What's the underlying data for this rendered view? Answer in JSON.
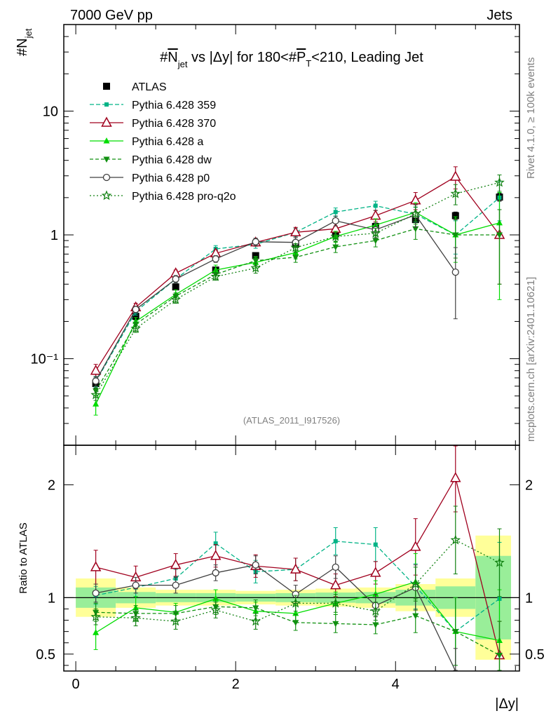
{
  "header": {
    "left": "7000 GeV pp",
    "right": "Jets",
    "analysis_tag": "(ATLAS_2011_I917526)",
    "side_top": "Rivet 4.1.0, ≥ 100k events",
    "side_bottom": "mcplots.cern.ch [arXiv:2401.10621]"
  },
  "chart_data": [
    {
      "type": "line",
      "panel": "main",
      "title": "#N_jet vs |Δy| for 180<#P_T<210, Leading Jet",
      "title_parts": {
        "a": "#",
        "b": "N",
        "c": "jet",
        "d": " vs |Δy| for 180<#",
        "e": "P",
        "f": "T",
        "g": "<210, Leading Jet"
      },
      "ylabel": "#N_jet",
      "ylabel_parts": {
        "base": "#N",
        "sub": "jet"
      },
      "yscale": "log",
      "ylim": [
        0.02,
        50
      ],
      "xlim": [
        -0.15,
        5.55
      ],
      "ytick_labels": [
        "10",
        "1",
        "10⁻¹"
      ],
      "ytick_values": [
        10,
        1,
        0.1
      ],
      "x": [
        0.25,
        0.75,
        1.25,
        1.75,
        2.25,
        2.75,
        3.25,
        3.75,
        4.25,
        4.75,
        5.3
      ],
      "series": [
        {
          "name": "ATLAS",
          "color": "#000000",
          "marker": "square",
          "dash": "none",
          "line": false,
          "values": [
            0.063,
            0.22,
            0.38,
            0.52,
            0.68,
            0.84,
            1.02,
            1.17,
            1.33,
            1.43,
            2.02
          ],
          "err": [
            0.005,
            0.015,
            0.02,
            0.025,
            0.03,
            0.04,
            0.05,
            0.06,
            0.07,
            0.1,
            0.15
          ]
        },
        {
          "name": "Pythia 6.428 359",
          "color": "#00b386",
          "marker": "smallsquare",
          "dash": "6,3",
          "line": true,
          "values": [
            0.065,
            0.24,
            0.44,
            0.77,
            0.84,
            1.05,
            1.53,
            1.72,
            1.47,
            1.0,
            2.0
          ],
          "err": [
            0.006,
            0.015,
            0.03,
            0.05,
            0.06,
            0.08,
            0.12,
            0.15,
            0.2,
            0.3,
            0.7
          ]
        },
        {
          "name": "Pythia 6.428 370",
          "color": "#a0001e",
          "marker": "triangle-open",
          "dash": "none",
          "line": true,
          "values": [
            0.08,
            0.26,
            0.49,
            0.71,
            0.87,
            1.05,
            1.12,
            1.43,
            1.9,
            2.95,
            1.0
          ],
          "err": [
            0.01,
            0.02,
            0.03,
            0.04,
            0.06,
            0.1,
            0.12,
            0.15,
            0.3,
            0.6,
            0.6
          ]
        },
        {
          "name": "Pythia 6.428 a",
          "color": "#00dd00",
          "marker": "triangle",
          "dash": "none",
          "line": true,
          "values": [
            0.043,
            0.2,
            0.33,
            0.52,
            0.6,
            0.72,
            0.97,
            1.2,
            1.52,
            1.0,
            1.25
          ],
          "err": [
            0.008,
            0.015,
            0.03,
            0.05,
            0.06,
            0.08,
            0.1,
            0.15,
            0.3,
            0.4,
            0.95
          ]
        },
        {
          "name": "Pythia 6.428 dw",
          "color": "#109010",
          "marker": "triangle-down",
          "dash": "5,3",
          "line": true,
          "values": [
            0.055,
            0.19,
            0.32,
            0.48,
            0.62,
            0.66,
            0.8,
            0.9,
            1.12,
            1.0,
            1.0
          ],
          "err": [
            0.005,
            0.015,
            0.02,
            0.04,
            0.05,
            0.06,
            0.08,
            0.1,
            0.2,
            0.35,
            0.6
          ]
        },
        {
          "name": "Pythia 6.428 p0",
          "color": "#404040",
          "marker": "circle-open",
          "dash": "none",
          "line": true,
          "values": [
            0.066,
            0.25,
            0.44,
            0.64,
            0.88,
            0.87,
            1.3,
            1.1,
            1.45,
            0.5,
            0.0
          ],
          "err": [
            0.006,
            0.015,
            0.03,
            0.04,
            0.06,
            0.08,
            0.12,
            0.15,
            0.3,
            0.29,
            0.0
          ]
        },
        {
          "name": "Pythia 6.428 pro-q2o",
          "color": "#108010",
          "marker": "star",
          "dash": "2,3",
          "line": true,
          "values": [
            0.051,
            0.175,
            0.3,
            0.46,
            0.54,
            0.79,
            0.97,
            1.03,
            1.48,
            2.15,
            2.65
          ],
          "err": [
            0.005,
            0.012,
            0.02,
            0.03,
            0.05,
            0.06,
            0.08,
            0.1,
            0.2,
            0.4,
            0.4
          ]
        }
      ]
    },
    {
      "type": "line",
      "panel": "ratio",
      "ylabel": "Ratio to ATLAS",
      "xlabel": "|Δy|",
      "ylim": [
        0.35,
        2.35
      ],
      "xlim": [
        -0.15,
        5.55
      ],
      "xtick_labels": [
        "0",
        "2",
        "4"
      ],
      "xtick_values": [
        0,
        2,
        4
      ],
      "ytick_labels": [
        "2",
        "1",
        "0.5"
      ],
      "ytick_values": [
        2,
        1,
        0.5
      ],
      "bins": [
        0,
        0.5,
        1.0,
        1.5,
        2.0,
        2.5,
        3.0,
        3.5,
        4.0,
        4.5,
        5.0,
        5.55
      ],
      "band_outer": [
        0.17,
        0.09,
        0.07,
        0.07,
        0.06,
        0.07,
        0.08,
        0.09,
        0.12,
        0.17,
        0.55
      ],
      "band_inner": [
        0.09,
        0.05,
        0.04,
        0.04,
        0.035,
        0.04,
        0.045,
        0.05,
        0.07,
        0.1,
        0.37
      ],
      "band_colors": {
        "outer": "#ffff99",
        "inner": "#99ee99"
      },
      "x": [
        0.25,
        0.75,
        1.25,
        1.75,
        2.25,
        2.75,
        3.25,
        3.75,
        4.25,
        4.75,
        5.3
      ],
      "series": [
        {
          "name": "Pythia 6.428 359",
          "values": [
            1.02,
            1.09,
            1.17,
            1.48,
            1.23,
            1.25,
            1.5,
            1.47,
            1.1,
            0.7,
            0.99
          ],
          "err": [
            0.08,
            0.08,
            0.08,
            0.1,
            0.1,
            0.1,
            0.12,
            0.15,
            0.2,
            0.3,
            0.5
          ]
        },
        {
          "name": "Pythia 6.428 370",
          "values": [
            1.27,
            1.18,
            1.29,
            1.37,
            1.28,
            1.25,
            1.11,
            1.22,
            1.45,
            2.06,
            0.49
          ],
          "err": [
            0.15,
            0.1,
            0.1,
            0.1,
            0.1,
            0.1,
            0.1,
            0.1,
            0.25,
            0.3,
            0.3
          ]
        },
        {
          "name": "Pythia 6.428 a",
          "values": [
            0.69,
            0.91,
            0.87,
            0.99,
            0.88,
            0.86,
            0.95,
            1.03,
            1.14,
            0.7,
            0.62
          ],
          "err": [
            0.15,
            0.1,
            0.08,
            0.08,
            0.08,
            0.08,
            0.1,
            0.12,
            0.25,
            0.3,
            0.45
          ]
        },
        {
          "name": "Pythia 6.428 dw",
          "values": [
            0.87,
            0.86,
            0.86,
            0.92,
            0.91,
            0.78,
            0.77,
            0.76,
            0.84,
            0.7,
            0.49
          ],
          "err": [
            0.08,
            0.07,
            0.07,
            0.07,
            0.07,
            0.07,
            0.08,
            0.08,
            0.15,
            0.3,
            0.3
          ]
        },
        {
          "name": "Pythia 6.428 p0",
          "values": [
            1.04,
            1.11,
            1.11,
            1.22,
            1.29,
            1.03,
            1.27,
            0.93,
            1.09,
            0.35,
            0.0
          ],
          "err": [
            0.08,
            0.07,
            0.07,
            0.07,
            0.08,
            0.08,
            0.1,
            0.1,
            0.2,
            0.2,
            0.0
          ]
        },
        {
          "name": "Pythia 6.428 pro-q2o",
          "values": [
            0.83,
            0.82,
            0.79,
            0.89,
            0.79,
            0.95,
            0.95,
            0.88,
            1.12,
            1.51,
            1.31
          ],
          "err": [
            0.07,
            0.07,
            0.07,
            0.07,
            0.07,
            0.07,
            0.08,
            0.08,
            0.15,
            0.3,
            0.3
          ]
        }
      ]
    }
  ]
}
